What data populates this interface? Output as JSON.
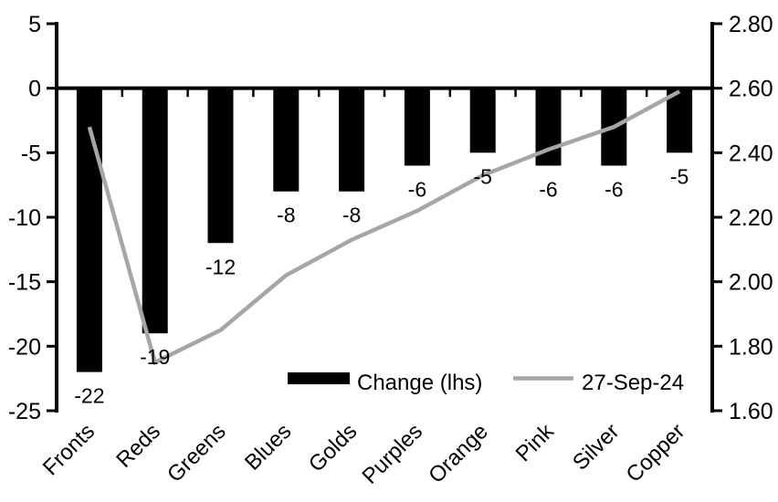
{
  "chart_data": {
    "type": "bar",
    "subtype": "bar-line-combo",
    "title": "",
    "categories": [
      "Fronts",
      "Reds",
      "Greens",
      "Blues",
      "Golds",
      "Purples",
      "Orange",
      "Pink",
      "Silver",
      "Copper"
    ],
    "series": [
      {
        "name": "Change (lhs)",
        "type": "bar",
        "axis": "left",
        "color": "#000000",
        "values": [
          -22,
          -19,
          -12,
          -8,
          -8,
          -6,
          -5,
          -6,
          -6,
          -5
        ]
      },
      {
        "name": "27-Sep-24",
        "type": "line",
        "axis": "right",
        "color": "#a6a6a6",
        "values": [
          2.48,
          1.75,
          1.85,
          2.02,
          2.13,
          2.22,
          2.33,
          2.41,
          2.48,
          2.59
        ]
      }
    ],
    "bar_labels": [
      "-22",
      "-19",
      "-12",
      "-8",
      "-8",
      "-6",
      "-5",
      "-6",
      "-6",
      "-5"
    ],
    "left_axis": {
      "min": -25,
      "max": 5,
      "step": 5,
      "tick_labels": [
        "5",
        "0",
        "-5",
        "-10",
        "-15",
        "-20",
        "-25"
      ]
    },
    "right_axis": {
      "min": 1.6,
      "max": 2.8,
      "step": 0.2,
      "tick_labels": [
        "2.80",
        "2.60",
        "2.40",
        "2.20",
        "2.00",
        "1.80",
        "1.60"
      ]
    },
    "legend": [
      {
        "label": "Change (lhs)",
        "swatch": "bar",
        "color": "#000000"
      },
      {
        "label": "27-Sep-24",
        "swatch": "line",
        "color": "#a6a6a6"
      }
    ],
    "legend_position": "bottom-center-inside",
    "grid": false,
    "xlabel": "",
    "ylabel_left": "",
    "ylabel_right": ""
  },
  "colors": {
    "bar": "#000000",
    "line": "#a6a6a6",
    "axis": "#000000",
    "text": "#000000",
    "background": "#ffffff"
  }
}
